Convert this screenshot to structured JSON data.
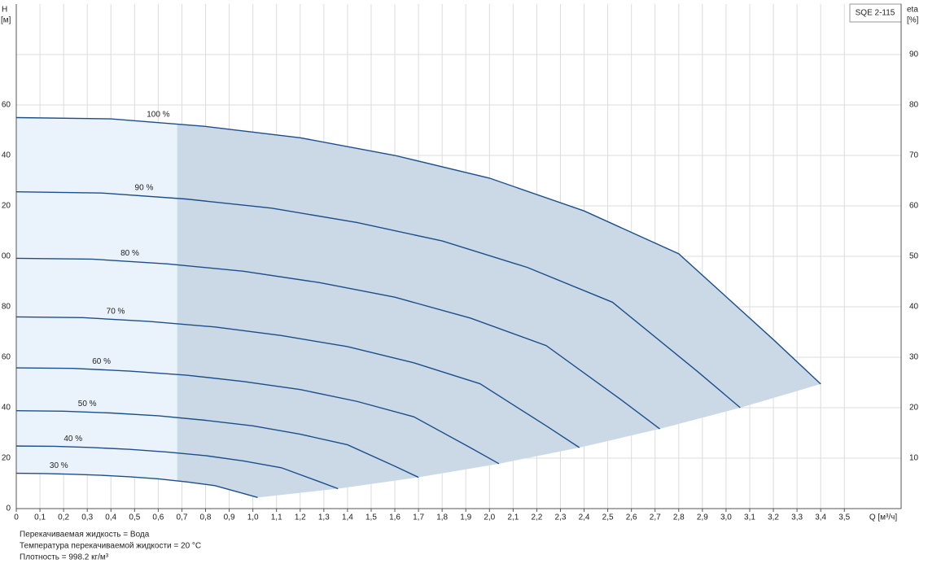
{
  "chart_data": {
    "type": "line",
    "legend_label": "SQE 2-115",
    "y_axis_label": "H",
    "y_axis_unit": "[м]",
    "y2_axis_label": "eta",
    "y2_axis_unit": "[%]",
    "x_axis_label": "Q [м³/ч]",
    "notes": [
      "Перекачиваемая жидкость = Вода",
      "Температура перекачиваемой жидкости = 20 °C",
      "Плотность = 998.2 кг/м³"
    ],
    "color": "#1b4f8c",
    "grid": true,
    "xlim": [
      0,
      3.74
    ],
    "ylim": [
      0,
      200
    ],
    "y2lim": [
      0,
      100
    ],
    "xticks": [
      0,
      {
        "value": 0.1,
        "label": "0,1"
      },
      {
        "value": 0.2,
        "label": "0,2"
      },
      {
        "value": 0.3,
        "label": "0,3"
      },
      {
        "value": 0.4,
        "label": "0,4"
      },
      {
        "value": 0.5,
        "label": "0,5"
      },
      {
        "value": 0.6,
        "label": "0,6"
      },
      {
        "value": 0.7,
        "label": "0,7"
      },
      {
        "value": 0.8,
        "label": "0,8"
      },
      {
        "value": 0.9,
        "label": "0,9"
      },
      {
        "value": 1.0,
        "label": "1,0"
      },
      {
        "value": 1.1,
        "label": "1,1"
      },
      {
        "value": 1.2,
        "label": "1,2"
      },
      {
        "value": 1.3,
        "label": "1,3"
      },
      {
        "value": 1.4,
        "label": "1,4"
      },
      {
        "value": 1.5,
        "label": "1,5"
      },
      {
        "value": 1.6,
        "label": "1,6"
      },
      {
        "value": 1.7,
        "label": "1,7"
      },
      {
        "value": 1.8,
        "label": "1,8"
      },
      {
        "value": 1.9,
        "label": "1,9"
      },
      {
        "value": 2.0,
        "label": "2,0"
      },
      {
        "value": 2.1,
        "label": "2,1"
      },
      {
        "value": 2.2,
        "label": "2,2"
      },
      {
        "value": 2.3,
        "label": "2,3"
      },
      {
        "value": 2.4,
        "label": "2,4"
      },
      {
        "value": 2.5,
        "label": "2,5"
      },
      {
        "value": 2.6,
        "label": "2,6"
      },
      {
        "value": 2.7,
        "label": "2,7"
      },
      {
        "value": 2.8,
        "label": "2,8"
      },
      {
        "value": 2.9,
        "label": "2,9"
      },
      {
        "value": 3.0,
        "label": "3,0"
      },
      {
        "value": 3.1,
        "label": "3,1"
      },
      {
        "value": 3.2,
        "label": "3,2"
      },
      {
        "value": 3.3,
        "label": "3,3"
      },
      {
        "value": 3.4,
        "label": "3,4"
      },
      {
        "value": 3.5,
        "label": "3,5"
      }
    ],
    "yticks": [
      0,
      20,
      40,
      60,
      80,
      {
        "value": 100,
        "label": "00"
      },
      {
        "value": 120,
        "label": "20"
      },
      {
        "value": 140,
        "label": "40"
      },
      {
        "value": 160,
        "label": "60"
      }
    ],
    "y2ticks": [
      10,
      20,
      30,
      40,
      50,
      60,
      70,
      80,
      90
    ],
    "shade_split_x": 0.68,
    "series": [
      {
        "name": "100 %",
        "x": [
          0,
          0.4,
          0.8,
          1.2,
          1.6,
          2.0,
          2.4,
          2.8,
          3.2,
          3.4
        ],
        "values": [
          155,
          154.5,
          151.5,
          147,
          140,
          131,
          118,
          101,
          67,
          49.4
        ]
      },
      {
        "name": "90 %",
        "x": [
          0,
          0.36,
          0.72,
          1.08,
          1.44,
          1.8,
          2.16,
          2.52,
          2.88,
          3.06
        ],
        "values": [
          125.6,
          125.1,
          122.7,
          119.1,
          113.4,
          106.1,
          95.6,
          81.8,
          54.3,
          40.0
        ]
      },
      {
        "name": "80 %",
        "x": [
          0,
          0.32,
          0.64,
          0.96,
          1.28,
          1.6,
          1.92,
          2.24,
          2.56,
          2.72
        ],
        "values": [
          99.2,
          98.9,
          97.0,
          94.1,
          89.6,
          83.8,
          75.5,
          64.6,
          42.9,
          31.6
        ]
      },
      {
        "name": "70 %",
        "x": [
          0,
          0.28,
          0.56,
          0.84,
          1.12,
          1.4,
          1.68,
          1.96,
          2.24,
          2.38
        ],
        "values": [
          76.0,
          75.7,
          74.2,
          72.0,
          68.6,
          64.2,
          57.8,
          49.5,
          32.8,
          24.2
        ]
      },
      {
        "name": "60 %",
        "x": [
          0,
          0.24,
          0.48,
          0.72,
          0.96,
          1.2,
          1.44,
          1.68,
          1.92,
          2.04
        ],
        "values": [
          55.8,
          55.6,
          54.5,
          52.9,
          50.4,
          47.2,
          42.5,
          36.4,
          24.1,
          17.8
        ]
      },
      {
        "name": "50 %",
        "x": [
          0,
          0.2,
          0.4,
          0.6,
          0.8,
          1.0,
          1.2,
          1.4,
          1.6,
          1.7
        ],
        "values": [
          38.8,
          38.6,
          37.9,
          36.8,
          35.0,
          32.8,
          29.5,
          25.3,
          16.8,
          12.4
        ]
      },
      {
        "name": "40 %",
        "x": [
          0,
          0.16,
          0.32,
          0.48,
          0.64,
          0.8,
          0.96,
          1.12,
          1.28,
          1.36
        ],
        "values": [
          24.8,
          24.7,
          24.2,
          23.5,
          22.4,
          21.0,
          18.9,
          16.2,
          10.7,
          7.9
        ]
      },
      {
        "name": "30 %",
        "x": [
          0,
          0.12,
          0.24,
          0.36,
          0.48,
          0.6,
          0.72,
          0.84,
          0.96,
          1.02
        ],
        "values": [
          14.0,
          13.9,
          13.6,
          13.2,
          12.6,
          11.8,
          10.6,
          9.1,
          6.0,
          4.4
        ]
      }
    ]
  }
}
